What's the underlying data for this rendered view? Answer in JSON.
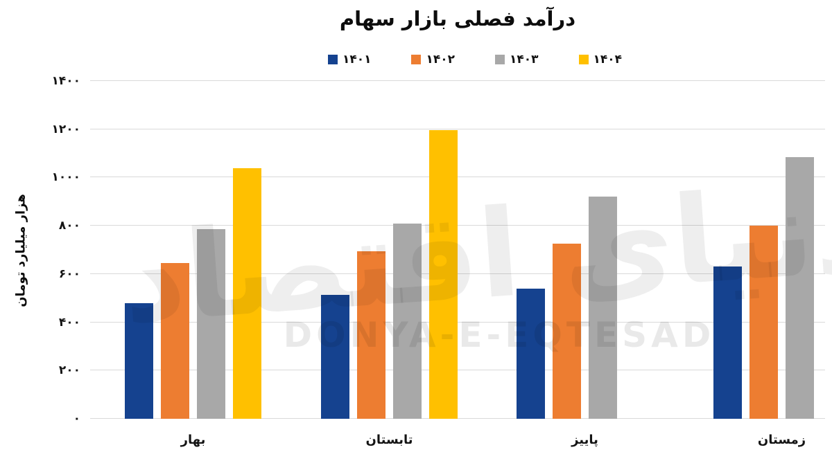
{
  "title": "درآمد فصلی بازار سهام",
  "y_axis": {
    "label": "هزار میلیارد تومان",
    "max": 1400,
    "ticks": [
      {
        "value": 1400,
        "label": "۱۴۰۰"
      },
      {
        "value": 1200,
        "label": "۱۲۰۰"
      },
      {
        "value": 1000,
        "label": "۱۰۰۰"
      },
      {
        "value": 800,
        "label": "۸۰۰"
      },
      {
        "value": 600,
        "label": "۶۰۰"
      },
      {
        "value": 400,
        "label": "۴۰۰"
      },
      {
        "value": 200,
        "label": "۲۰۰"
      },
      {
        "value": 0,
        "label": "۰"
      }
    ]
  },
  "watermark": {
    "persian": "دنیای اقتصاد",
    "latin": "DONYA-E-EQTESAD"
  },
  "colors": {
    "series_1401": "#15428F",
    "series_1402": "#ED7D31",
    "series_1403": "#A8A8A8",
    "series_1404": "#FFC000",
    "gridline": "#D9D9D9"
  },
  "chart_data": {
    "type": "bar",
    "title": "درآمد فصلی بازار سهام",
    "xlabel": "",
    "ylabel": "هزار میلیارد تومان",
    "ylim": [
      0,
      1400
    ],
    "grid": true,
    "legend_position": "top",
    "categories": [
      "بهار",
      "تابستان",
      "پاییز",
      "زمستان"
    ],
    "series": [
      {
        "name": "۱۴۰۱",
        "color": "#15428F",
        "values": [
          480,
          515,
          540,
          630
        ]
      },
      {
        "name": "۱۴۰۲",
        "color": "#ED7D31",
        "values": [
          645,
          695,
          725,
          800
        ]
      },
      {
        "name": "۱۴۰۳",
        "color": "#A8A8A8",
        "values": [
          785,
          810,
          920,
          1085
        ]
      },
      {
        "name": "۱۴۰۴",
        "color": "#FFC000",
        "values": [
          1040,
          1195,
          null,
          null
        ]
      }
    ]
  }
}
